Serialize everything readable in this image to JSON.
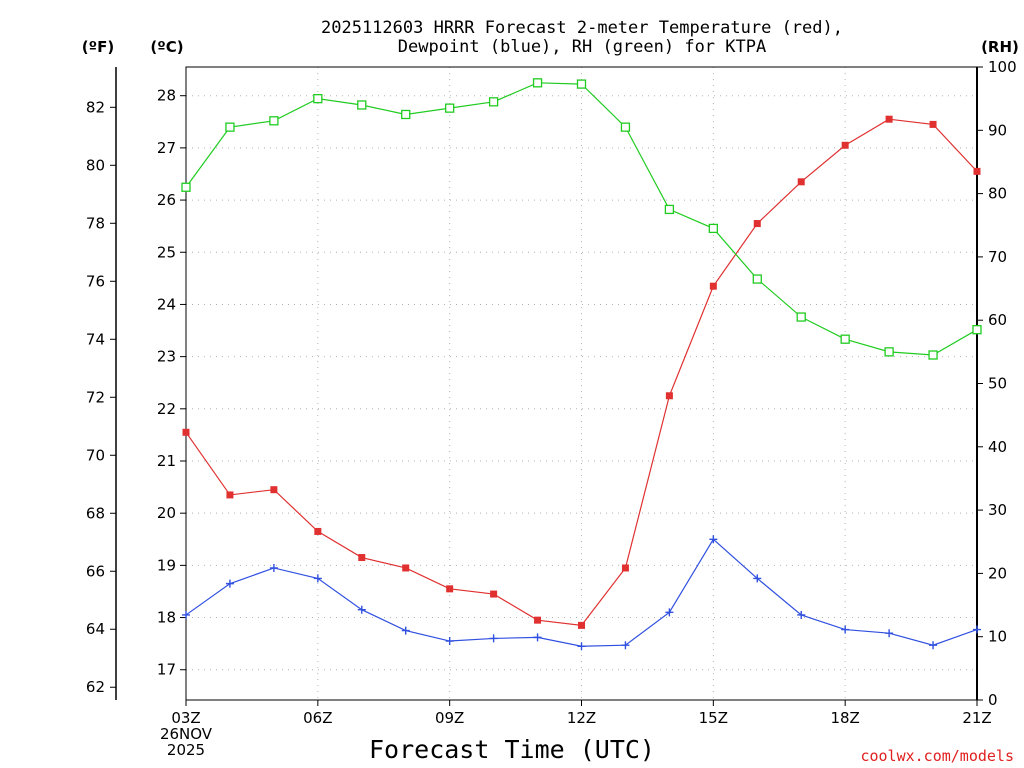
{
  "chart_data": {
    "type": "line",
    "title_line1": "2025112603 HRRR Forecast 2-meter Temperature (red),",
    "title_line2": "Dewpoint (blue), RH (green) for KTPA",
    "xlabel": "Forecast Time (UTC)",
    "credit": "coolwx.com/models",
    "x_hours": [
      3,
      4,
      5,
      6,
      7,
      8,
      9,
      10,
      11,
      12,
      13,
      14,
      15,
      16,
      17,
      18,
      19,
      20,
      21
    ],
    "x_ticks": [
      {
        "hour": 3,
        "label": "03Z"
      },
      {
        "hour": 6,
        "label": "06Z"
      },
      {
        "hour": 9,
        "label": "09Z"
      },
      {
        "hour": 12,
        "label": "12Z"
      },
      {
        "hour": 15,
        "label": "15Z"
      },
      {
        "hour": 18,
        "label": "18Z"
      },
      {
        "hour": 21,
        "label": "21Z"
      }
    ],
    "date_label_line1": "26NOV",
    "date_label_line2": "2025",
    "xlim": [
      3,
      21
    ],
    "left_axis_c": {
      "unit_label": "(ºC)",
      "ylim": [
        16.42,
        28.55
      ],
      "ticks": [
        "17",
        "18",
        "19",
        "20",
        "21",
        "22",
        "23",
        "24",
        "25",
        "26",
        "27",
        "28"
      ]
    },
    "left_axis_f": {
      "unit_label": "(ºF)",
      "ylim": [
        61.56,
        83.39
      ],
      "ticks": [
        "62",
        "64",
        "66",
        "68",
        "70",
        "72",
        "74",
        "76",
        "78",
        "80",
        "82"
      ]
    },
    "right_axis_rh": {
      "unit_label": "(RH)",
      "ylim": [
        0,
        100
      ],
      "ticks": [
        "0",
        "10",
        "20",
        "30",
        "40",
        "50",
        "60",
        "70",
        "80",
        "90",
        "100"
      ]
    },
    "series": [
      {
        "name": "Temperature (°C)",
        "color": "#e03030",
        "marker": "filled-square",
        "axis": "celsius",
        "values": [
          21.55,
          20.35,
          20.45,
          19.65,
          19.15,
          18.95,
          18.55,
          18.45,
          17.95,
          17.85,
          18.95,
          22.25,
          24.35,
          25.55,
          26.35,
          27.05,
          27.55,
          27.45,
          26.55
        ]
      },
      {
        "name": "Dewpoint (°C)",
        "color": "#3050e0",
        "marker": "plus",
        "axis": "celsius",
        "values": [
          18.05,
          18.65,
          18.95,
          18.75,
          18.15,
          17.75,
          17.55,
          17.6,
          17.62,
          17.45,
          17.47,
          18.1,
          19.5,
          18.75,
          18.05,
          17.77,
          17.7,
          17.47,
          17.77
        ]
      },
      {
        "name": "RH (%)",
        "color": "#20cc20",
        "marker": "open-square",
        "axis": "rh",
        "values": [
          81,
          90.5,
          91.5,
          95,
          94,
          92.5,
          93.5,
          94.5,
          97.5,
          97.3,
          90.5,
          77.5,
          74.5,
          66.5,
          60.5,
          57,
          55,
          54.5,
          58.5
        ]
      }
    ]
  }
}
